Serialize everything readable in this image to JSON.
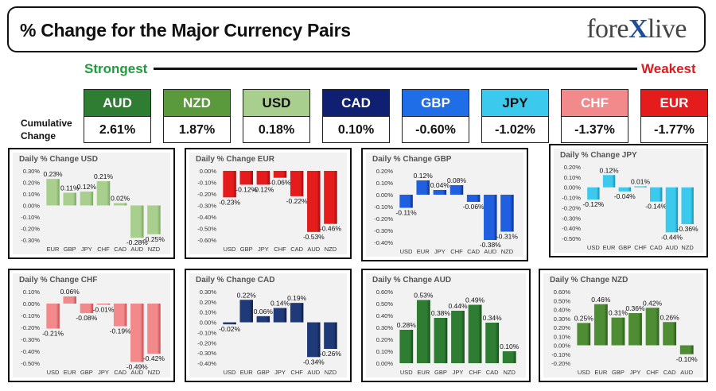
{
  "header": {
    "title": "% Change for the Major Currency Pairs",
    "logo_left": "fore",
    "logo_x": "X",
    "logo_right": "live",
    "strongest_label": "Strongest",
    "weakest_label": "Weakest",
    "cumulative_label": "Cumulative Change"
  },
  "currencies": [
    {
      "code": "AUD",
      "value": "2.61%",
      "head_color": "#2e7d32",
      "text_color": "#ffffff"
    },
    {
      "code": "NZD",
      "value": "1.87%",
      "head_color": "#5a9a3c",
      "text_color": "#ffffff"
    },
    {
      "code": "USD",
      "value": "0.18%",
      "head_color": "#a9cf8e",
      "text_color": "#111111"
    },
    {
      "code": "CAD",
      "value": "0.10%",
      "head_color": "#0f1f72",
      "text_color": "#ffffff"
    },
    {
      "code": "GBP",
      "value": "-0.60%",
      "head_color": "#1f6ee8",
      "text_color": "#ffffff"
    },
    {
      "code": "JPY",
      "value": "-1.02%",
      "head_color": "#3cc9ee",
      "text_color": "#111111"
    },
    {
      "code": "CHF",
      "value": "-1.37%",
      "head_color": "#f28a8c",
      "text_color": "#ffffff"
    },
    {
      "code": "EUR",
      "value": "-1.77%",
      "head_color": "#e51c1c",
      "text_color": "#ffffff"
    }
  ],
  "chart_data": [
    {
      "type": "bar",
      "title": "Daily % Change USD",
      "categories": [
        "EUR",
        "GBP",
        "JPY",
        "CHF",
        "CAD",
        "AUD",
        "NZD"
      ],
      "values": [
        0.23,
        0.11,
        0.12,
        0.21,
        0.02,
        -0.28,
        -0.25
      ],
      "ylim": [
        -0.3,
        0.3
      ],
      "ticks": [
        0.3,
        0.2,
        0.1,
        0,
        -0.1,
        -0.2,
        -0.3
      ],
      "color": "#a9cf8e",
      "fill_dark": "#7aa860"
    },
    {
      "type": "bar",
      "title": "Daily % Change EUR",
      "categories": [
        "USD",
        "GBP",
        "JPY",
        "CHF",
        "CAD",
        "AUD",
        "NZD"
      ],
      "values": [
        -0.23,
        -0.12,
        -0.12,
        -0.06,
        -0.22,
        -0.53,
        -0.46
      ],
      "ylim": [
        -0.6,
        0
      ],
      "ticks": [
        0,
        -0.1,
        -0.2,
        -0.3,
        -0.4,
        -0.5,
        -0.6
      ],
      "color": "#e51c1c",
      "fill_dark": "#9c0d0d"
    },
    {
      "type": "bar",
      "title": "Daily % Change GBP",
      "categories": [
        "USD",
        "EUR",
        "JPY",
        "CHF",
        "CAD",
        "AUD",
        "NZD"
      ],
      "values": [
        -0.11,
        0.12,
        0.04,
        0.08,
        -0.06,
        -0.38,
        -0.31
      ],
      "ylim": [
        -0.4,
        0.2
      ],
      "ticks": [
        0.2,
        0.1,
        0,
        -0.1,
        -0.2,
        -0.3,
        -0.4
      ],
      "color": "#1f5fe0",
      "fill_dark": "#0a2f8c"
    },
    {
      "type": "bar",
      "title": "Daily % Change JPY",
      "categories": [
        "USD",
        "EUR",
        "GBP",
        "CHF",
        "CAD",
        "AUD",
        "NZD"
      ],
      "values": [
        -0.12,
        0.12,
        -0.04,
        0.01,
        -0.14,
        -0.44,
        -0.36
      ],
      "ylim": [
        -0.5,
        0.2
      ],
      "ticks": [
        0.2,
        0.1,
        0,
        -0.1,
        -0.2,
        -0.3,
        -0.4,
        -0.5
      ],
      "color": "#3cc9ee",
      "fill_dark": "#1592b8"
    },
    {
      "type": "bar",
      "title": "Daily % Change CHF",
      "categories": [
        "USD",
        "EUR",
        "GBP",
        "JPY",
        "CAD",
        "AUD",
        "NZD"
      ],
      "values": [
        -0.21,
        0.06,
        -0.08,
        -0.01,
        -0.19,
        -0.49,
        -0.42
      ],
      "ylim": [
        -0.5,
        0.1
      ],
      "ticks": [
        0.1,
        0,
        -0.1,
        -0.2,
        -0.3,
        -0.4,
        -0.5
      ],
      "color": "#f28a8c",
      "fill_dark": "#c44c4f"
    },
    {
      "type": "bar",
      "title": "Daily % Change CAD",
      "categories": [
        "USD",
        "EUR",
        "GBP",
        "JPY",
        "CHF",
        "AUD",
        "NZD"
      ],
      "values": [
        -0.02,
        0.22,
        0.06,
        0.14,
        0.19,
        -0.34,
        -0.26
      ],
      "ylim": [
        -0.4,
        0.3
      ],
      "ticks": [
        0.3,
        0.2,
        0.1,
        0,
        -0.1,
        -0.2,
        -0.3,
        -0.4
      ],
      "color": "#1f3a78",
      "fill_dark": "#0b1a44"
    },
    {
      "type": "bar",
      "title": "Daily % Change AUD",
      "categories": [
        "USD",
        "EUR",
        "GBP",
        "JPY",
        "CHF",
        "CAD",
        "NZD"
      ],
      "values": [
        0.28,
        0.53,
        0.38,
        0.44,
        0.49,
        0.34,
        0.1
      ],
      "ylim": [
        0,
        0.6
      ],
      "ticks": [
        0.6,
        0.5,
        0.4,
        0.3,
        0.2,
        0.1,
        0
      ],
      "color": "#2e7d32",
      "fill_dark": "#174d1b"
    },
    {
      "type": "bar",
      "title": "Daily % Change NZD",
      "categories": [
        "USD",
        "EUR",
        "GBP",
        "JPY",
        "CHF",
        "CAD",
        "AUD"
      ],
      "values": [
        0.25,
        0.46,
        0.31,
        0.36,
        0.42,
        0.26,
        -0.1
      ],
      "ylim": [
        -0.2,
        0.6
      ],
      "ticks": [
        0.6,
        0.5,
        0.4,
        0.3,
        0.2,
        0.1,
        0,
        -0.1,
        -0.2
      ],
      "color": "#4e8d33",
      "fill_dark": "#2b5a18"
    }
  ]
}
